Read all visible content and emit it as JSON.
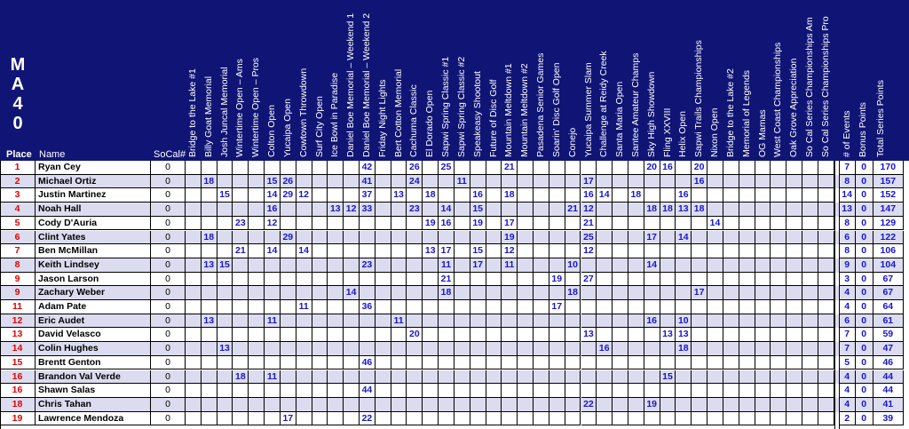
{
  "division": "MA40",
  "headers": {
    "place": "Place",
    "name": "Name",
    "socal": "SoCal#",
    "events": [
      "Bridge to the Lake #1",
      "Billy Goat Memorial",
      "Josh Juncal Memorial",
      "Wintertime Open – Ams",
      "Wintertime Open – Pros",
      "Colton Open",
      "Yucaipa Open",
      "Cowtown Throwdown",
      "Surf City Open",
      "Ice Bowl in Paradise",
      "Daniel Boe Memorial – Weekend 1",
      "Daniel Boe Memorial – Weekend 2",
      "Friday Night Lights",
      "Bert Cotton Memorial",
      "Cachuma Classic",
      "El Dorado Open",
      "Sapwi Spring Classic #1",
      "Sapwi Spring Classic #2",
      "Speakeasy Shootout",
      "Future of Disc Golf",
      "Mountain Meltdown #1",
      "Mountain Meltdown #2",
      "Pasadena Senior Games",
      "Soarin' Disc Golf Open",
      "Conejo",
      "Yucaipa Summer Slam",
      "Challenge at Reidy Creek",
      "Santa Maria Open",
      "Santee Amateur Champs",
      "Sky High Showdown",
      "Fling XXVIII",
      "Helix Open",
      "Sapwi Trails Championships",
      "Nixon Open",
      "Bridge to the Lake #2",
      "Memorial of Legends",
      "OG Mamas",
      "West Coast Championships",
      "Oak Grove Appreciation",
      "So Cal Series Championships Am",
      "So Cal Series Championships Pro"
    ],
    "totals": [
      "# of Events",
      "Bonus Points",
      "Total Series Points"
    ]
  },
  "rows": [
    {
      "place": "1",
      "name": "Ryan Cey",
      "socal": "0",
      "scores": {
        "11": "42",
        "14": "26",
        "16": "25",
        "20": "21",
        "29": "20",
        "30": "16",
        "32": "20"
      },
      "events": "7",
      "bonus": "0",
      "total": "170"
    },
    {
      "place": "2",
      "name": "Michael Ortiz",
      "socal": "0",
      "scores": {
        "1": "18",
        "5": "15",
        "6": "26",
        "11": "41",
        "14": "24",
        "17": "11",
        "25": "17",
        "32": "16"
      },
      "events": "8",
      "bonus": "0",
      "total": "157"
    },
    {
      "place": "3",
      "name": "Justin Martinez",
      "socal": "0",
      "scores": {
        "2": "15",
        "5": "14",
        "6": "29",
        "7": "12",
        "11": "37",
        "13": "13",
        "15": "18",
        "18": "16",
        "20": "18",
        "25": "16",
        "26": "14",
        "28": "18",
        "31": "16"
      },
      "events": "14",
      "bonus": "0",
      "total": "152"
    },
    {
      "place": "4",
      "name": "Noah Hall",
      "socal": "0",
      "scores": {
        "5": "16",
        "9": "13",
        "10": "12",
        "11": "33",
        "14": "23",
        "16": "14",
        "18": "15",
        "24": "21",
        "25": "12",
        "29": "18",
        "30": "18",
        "31": "13",
        "32": "18"
      },
      "events": "13",
      "bonus": "0",
      "total": "147"
    },
    {
      "place": "5",
      "name": "Cody D'Auria",
      "socal": "0",
      "scores": {
        "3": "23",
        "5": "12",
        "15": "19",
        "16": "16",
        "18": "19",
        "20": "17",
        "25": "21",
        "33": "14"
      },
      "events": "8",
      "bonus": "0",
      "total": "129"
    },
    {
      "place": "6",
      "name": "Clint Yates",
      "socal": "0",
      "scores": {
        "1": "18",
        "6": "29",
        "20": "19",
        "25": "25",
        "29": "17",
        "31": "14"
      },
      "events": "6",
      "bonus": "0",
      "total": "122"
    },
    {
      "place": "7",
      "name": "Ben McMillan",
      "socal": "0",
      "scores": {
        "3": "21",
        "5": "14",
        "7": "14",
        "15": "13",
        "16": "17",
        "18": "15",
        "20": "12",
        "25": "12"
      },
      "events": "8",
      "bonus": "0",
      "total": "106"
    },
    {
      "place": "8",
      "name": "Keith Lindsey",
      "socal": "0",
      "scores": {
        "1": "13",
        "2": "15",
        "11": "23",
        "16": "11",
        "18": "17",
        "20": "11",
        "24": "10",
        "29": "14"
      },
      "events": "9",
      "bonus": "0",
      "total": "104"
    },
    {
      "place": "9",
      "name": "Jason Larson",
      "socal": "0",
      "scores": {
        "16": "21",
        "23": "19",
        "25": "27"
      },
      "events": "3",
      "bonus": "0",
      "total": "67"
    },
    {
      "place": "9",
      "name": "Zachary Weber",
      "socal": "0",
      "scores": {
        "10": "14",
        "16": "18",
        "24": "18",
        "32": "17"
      },
      "events": "4",
      "bonus": "0",
      "total": "67"
    },
    {
      "place": "11",
      "name": "Adam Pate",
      "socal": "0",
      "scores": {
        "7": "11",
        "11": "36",
        "23": "17"
      },
      "events": "4",
      "bonus": "0",
      "total": "64"
    },
    {
      "place": "12",
      "name": "Eric Audet",
      "socal": "0",
      "scores": {
        "1": "13",
        "5": "11",
        "13": "11",
        "29": "16",
        "31": "10"
      },
      "events": "6",
      "bonus": "0",
      "total": "61"
    },
    {
      "place": "13",
      "name": "David Velasco",
      "socal": "0",
      "scores": {
        "14": "20",
        "25": "13",
        "30": "13",
        "31": "13"
      },
      "events": "7",
      "bonus": "0",
      "total": "59"
    },
    {
      "place": "14",
      "name": "Colin Hughes",
      "socal": "0",
      "scores": {
        "2": "13",
        "26": "16",
        "31": "18"
      },
      "events": "7",
      "bonus": "0",
      "total": "47"
    },
    {
      "place": "15",
      "name": "Brentt Genton",
      "socal": "0",
      "scores": {
        "11": "46"
      },
      "events": "5",
      "bonus": "0",
      "total": "46"
    },
    {
      "place": "16",
      "name": "Brandon Val Verde",
      "socal": "0",
      "scores": {
        "3": "18",
        "5": "11",
        "30": "15"
      },
      "events": "4",
      "bonus": "0",
      "total": "44"
    },
    {
      "place": "16",
      "name": "Shawn Salas",
      "socal": "0",
      "scores": {
        "11": "44"
      },
      "events": "4",
      "bonus": "0",
      "total": "44"
    },
    {
      "place": "18",
      "name": "Chris Tahan",
      "socal": "0",
      "scores": {
        "25": "22",
        "29": "19"
      },
      "events": "4",
      "bonus": "0",
      "total": "41"
    },
    {
      "place": "19",
      "name": "Lawrence Mendoza",
      "socal": "0",
      "scores": {
        "6": "17",
        "11": "22"
      },
      "events": "2",
      "bonus": "0",
      "total": "39"
    }
  ],
  "colors": {
    "header_bg": "#101575",
    "place": "#e00000",
    "points": "#1515d0",
    "alt_row": "#dcdcf0"
  }
}
